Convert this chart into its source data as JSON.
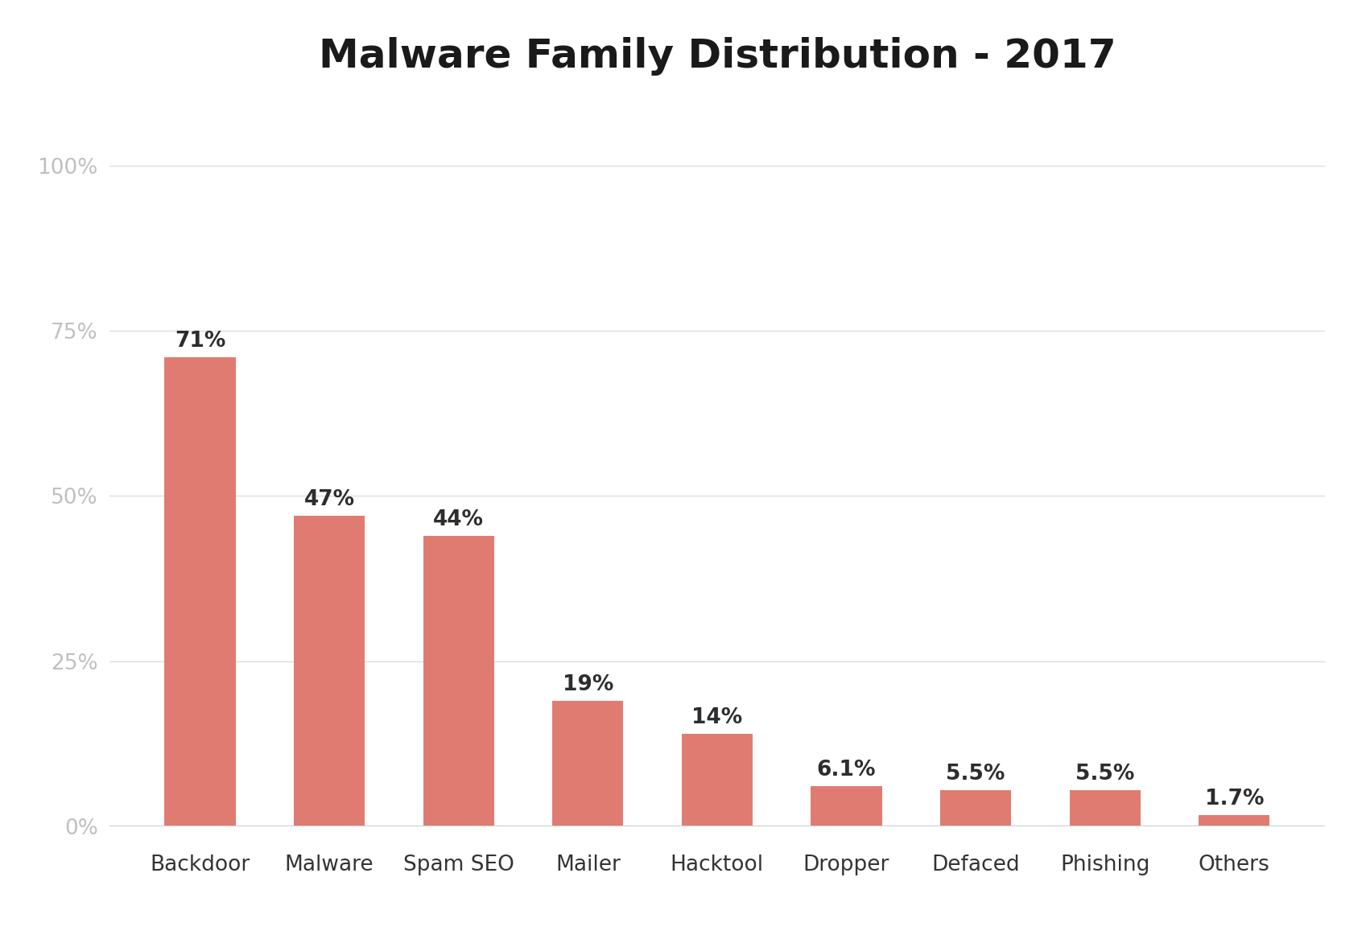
{
  "title": "Malware Family Distribution - 2017",
  "categories": [
    "Backdoor",
    "Malware",
    "Spam SEO",
    "Mailer",
    "Hacktool",
    "Dropper",
    "Defaced",
    "Phishing",
    "Others"
  ],
  "values": [
    71,
    47,
    44,
    19,
    14,
    6.1,
    5.5,
    5.5,
    1.7
  ],
  "labels": [
    "71%",
    "47%",
    "44%",
    "19%",
    "14%",
    "6.1%",
    "5.5%",
    "5.5%",
    "1.7%"
  ],
  "bar_color": "#e07b72",
  "background_color": "#ffffff",
  "title_fontsize": 36,
  "label_fontsize": 19,
  "tick_fontsize": 19,
  "ytick_label_color": "#c0c0c0",
  "xtick_label_color": "#333333",
  "bar_label_color": "#2d2d2d",
  "ylim": [
    0,
    100
  ],
  "yticks": [
    0,
    25,
    50,
    75,
    100
  ],
  "ytick_labels": [
    "0%",
    "25%",
    "50%",
    "75%",
    "100%"
  ],
  "grid_color": "#dddddd",
  "bar_width": 0.55
}
